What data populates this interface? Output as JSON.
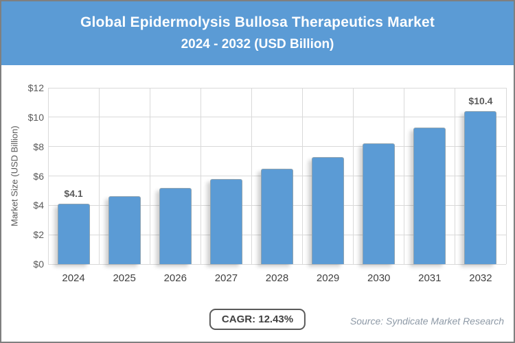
{
  "header": {
    "title_line1": "Global Epidermolysis Bullosa Therapeutics Market",
    "title_line2": "2024 - 2032 (USD Billion)",
    "bg_color": "#5B9BD5",
    "text_color": "#FFFFFF"
  },
  "chart_data": {
    "type": "bar",
    "title": "Global Epidermolysis Bullosa Therapeutics Market 2024 - 2032 (USD Billion)",
    "categories": [
      "2024",
      "2025",
      "2026",
      "2027",
      "2028",
      "2029",
      "2030",
      "2031",
      "2032"
    ],
    "values": [
      4.1,
      4.6,
      5.2,
      5.8,
      6.5,
      7.3,
      8.2,
      9.3,
      10.4
    ],
    "bar_labels": {
      "2024": "$4.1",
      "2032": "$10.4"
    },
    "xlabel": "",
    "ylabel": "Market Size (USD Billion)",
    "ylim": [
      0,
      12
    ],
    "ytick_step": 2,
    "ytick_prefix": "$",
    "grid": true,
    "legend": "none",
    "bar_color": "#5B9BD5",
    "gridline_color": "#D9D9D9"
  },
  "footer": {
    "cagr_label": "CAGR: 12.43%",
    "source": "Source: Syndicate Market Research"
  }
}
